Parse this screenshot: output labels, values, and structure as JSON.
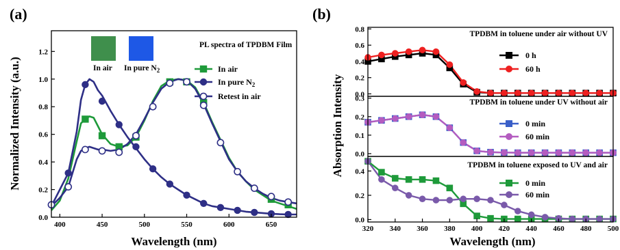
{
  "colors": {
    "green": "#1e9a3a",
    "navy": "#2e2f86",
    "red": "#ee2020",
    "black": "#000000",
    "blue": "#3a5fc8",
    "magenta": "#b45cc0",
    "purple": "#7a5aaa",
    "thumb_green": "#3f8f4c",
    "thumb_blue": "#1e58e6"
  },
  "chart_data": [
    {
      "panel": "(a)",
      "type": "line",
      "title": "PL spectra of TPDBM Film",
      "xlabel": "Wavelength (nm)",
      "ylabel": "Normalized Intensity (a.u.)",
      "xlim": [
        390,
        680
      ],
      "ylim": [
        0,
        1.35
      ],
      "xticks": [
        400,
        450,
        500,
        550,
        600,
        650
      ],
      "yticks": [
        0.0,
        0.2,
        0.4,
        0.6,
        0.8,
        1.0,
        1.2
      ],
      "legend_placement": "right",
      "insets": [
        {
          "label": "In air",
          "color": "thumb_green"
        },
        {
          "label": "In pure N",
          "sub": "2",
          "color": "thumb_blue"
        }
      ],
      "series": [
        {
          "name": "In air",
          "color": "green",
          "marker": "square",
          "filled": true,
          "curve_x": [
            390,
            400,
            410,
            420,
            425,
            430,
            435,
            440,
            445,
            450,
            460,
            470,
            480,
            490,
            500,
            510,
            520,
            530,
            540,
            550,
            560,
            570,
            580,
            590,
            600,
            610,
            620,
            630,
            640,
            650,
            660,
            670,
            680
          ],
          "curve_y": [
            0.05,
            0.12,
            0.28,
            0.55,
            0.68,
            0.71,
            0.73,
            0.72,
            0.66,
            0.6,
            0.53,
            0.51,
            0.52,
            0.58,
            0.7,
            0.84,
            0.95,
            0.99,
            1.0,
            0.99,
            0.94,
            0.83,
            0.69,
            0.56,
            0.43,
            0.33,
            0.26,
            0.2,
            0.16,
            0.12,
            0.1,
            0.08,
            0.06
          ],
          "marker_x": [
            430,
            450,
            470,
            490,
            530,
            550,
            570,
            650,
            670
          ],
          "marker_y": [
            0.71,
            0.59,
            0.51,
            0.58,
            0.98,
            0.98,
            0.83,
            0.13,
            0.09
          ]
        },
        {
          "name": "In pure N",
          "name_sub": "2",
          "color": "navy",
          "marker": "circle",
          "filled": true,
          "curve_x": [
            390,
            400,
            410,
            420,
            425,
            430,
            435,
            440,
            445,
            450,
            460,
            470,
            480,
            490,
            500,
            510,
            520,
            530,
            540,
            550,
            560,
            570,
            580,
            590,
            600,
            610,
            620,
            630,
            640,
            650,
            660,
            670,
            680
          ],
          "curve_y": [
            0.08,
            0.2,
            0.32,
            0.62,
            0.85,
            0.96,
            1.0,
            0.98,
            0.92,
            0.88,
            0.77,
            0.67,
            0.58,
            0.5,
            0.42,
            0.35,
            0.29,
            0.24,
            0.2,
            0.16,
            0.13,
            0.1,
            0.08,
            0.07,
            0.06,
            0.05,
            0.04,
            0.035,
            0.03,
            0.025,
            0.022,
            0.02,
            0.02
          ],
          "marker_x": [
            390,
            410,
            430,
            450,
            470,
            490,
            510,
            530,
            550,
            570,
            590,
            610,
            630,
            650,
            670
          ],
          "marker_y": [
            0.09,
            0.32,
            0.96,
            0.84,
            0.67,
            0.51,
            0.35,
            0.24,
            0.16,
            0.1,
            0.07,
            0.05,
            0.035,
            0.025,
            0.02
          ]
        },
        {
          "name": "Retest in air",
          "color": "navy",
          "marker": "circle",
          "filled": false,
          "curve_x": [
            390,
            400,
            410,
            420,
            425,
            430,
            435,
            440,
            445,
            450,
            460,
            470,
            480,
            490,
            500,
            510,
            520,
            530,
            540,
            550,
            560,
            570,
            580,
            590,
            600,
            610,
            620,
            630,
            640,
            650,
            660,
            670,
            680
          ],
          "curve_y": [
            0.08,
            0.14,
            0.22,
            0.42,
            0.48,
            0.5,
            0.51,
            0.5,
            0.49,
            0.49,
            0.48,
            0.49,
            0.53,
            0.6,
            0.71,
            0.83,
            0.93,
            0.98,
            1.0,
            0.99,
            0.93,
            0.82,
            0.68,
            0.55,
            0.42,
            0.33,
            0.26,
            0.21,
            0.17,
            0.14,
            0.12,
            0.11,
            0.1
          ],
          "marker_x": [
            390,
            410,
            430,
            450,
            470,
            490,
            510,
            530,
            550,
            570,
            590,
            610,
            630,
            650,
            670
          ],
          "marker_y": [
            0.09,
            0.22,
            0.49,
            0.48,
            0.47,
            0.59,
            0.8,
            0.97,
            0.98,
            0.81,
            0.54,
            0.33,
            0.21,
            0.15,
            0.11
          ]
        }
      ]
    },
    {
      "panel": "(b)",
      "type": "line",
      "xlabel": "Wavelength (nm)",
      "ylabel": "Absorption Intensity",
      "xlim": [
        320,
        500
      ],
      "xticks": [
        320,
        340,
        360,
        380,
        400,
        420,
        440,
        460,
        480,
        500
      ],
      "subplots": [
        {
          "title": "TPDBM in toluene under air without UV",
          "ylim": [
            -0.03,
            0.82
          ],
          "yticks": [
            0.0,
            0.2,
            0.4,
            0.6,
            0.8
          ],
          "series": [
            {
              "name": "0 h",
              "color": "black",
              "marker": "square",
              "x": [
                320,
                330,
                340,
                350,
                360,
                370,
                380,
                390,
                400,
                410,
                420,
                430,
                440,
                450,
                460,
                470,
                480,
                490,
                500
              ],
              "y": [
                0.4,
                0.43,
                0.46,
                0.48,
                0.5,
                0.48,
                0.32,
                0.12,
                0.02,
                0.01,
                0.01,
                0.01,
                0.01,
                0.01,
                0.01,
                0.01,
                0.01,
                0.01,
                0.01
              ]
            },
            {
              "name": "60 h",
              "color": "red",
              "marker": "circle",
              "x": [
                320,
                330,
                340,
                350,
                360,
                370,
                380,
                390,
                400,
                410,
                420,
                430,
                440,
                450,
                460,
                470,
                480,
                490,
                500
              ],
              "y": [
                0.45,
                0.48,
                0.5,
                0.52,
                0.54,
                0.52,
                0.36,
                0.14,
                0.03,
                0.01,
                0.01,
                0.01,
                0.01,
                0.01,
                0.01,
                0.01,
                0.01,
                0.01,
                0.01
              ]
            }
          ]
        },
        {
          "title": "TPDBM in toluene under UV without air",
          "ylim": [
            -0.015,
            0.31
          ],
          "yticks": [
            0.0,
            0.1,
            0.2,
            0.3
          ],
          "series": [
            {
              "name": "0 min",
              "color": "blue",
              "marker": "square",
              "x": [
                320,
                330,
                340,
                350,
                360,
                370,
                380,
                390,
                400,
                410,
                420,
                430,
                440,
                450,
                460,
                470,
                480,
                490,
                500
              ],
              "y": [
                0.17,
                0.18,
                0.19,
                0.2,
                0.21,
                0.2,
                0.14,
                0.06,
                0.015,
                0.008,
                0.006,
                0.005,
                0.005,
                0.005,
                0.005,
                0.005,
                0.005,
                0.005,
                0.005
              ]
            },
            {
              "name": "60 min",
              "color": "magenta",
              "marker": "circle",
              "x": [
                320,
                330,
                340,
                350,
                360,
                370,
                380,
                390,
                400,
                410,
                420,
                430,
                440,
                450,
                460,
                470,
                480,
                490,
                500
              ],
              "y": [
                0.17,
                0.18,
                0.19,
                0.2,
                0.21,
                0.2,
                0.14,
                0.06,
                0.015,
                0.008,
                0.006,
                0.005,
                0.005,
                0.005,
                0.005,
                0.005,
                0.005,
                0.005,
                0.005
              ]
            }
          ]
        },
        {
          "title": "TPDBM in toluene exposed to UV and air",
          "ylim": [
            -0.02,
            0.52
          ],
          "yticks": [
            0.0,
            0.2,
            0.4
          ],
          "series": [
            {
              "name": "0 min",
              "color": "green",
              "marker": "square",
              "x": [
                320,
                330,
                340,
                350,
                360,
                370,
                380,
                390,
                400,
                410,
                420,
                430,
                440,
                450,
                460,
                470,
                480,
                490,
                500
              ],
              "y": [
                0.48,
                0.39,
                0.34,
                0.33,
                0.33,
                0.32,
                0.26,
                0.13,
                0.03,
                0.01,
                0.005,
                0.005,
                0.005,
                0.005,
                0.005,
                0.005,
                0.005,
                0.005,
                0.005
              ]
            },
            {
              "name": "60 min",
              "color": "purple",
              "marker": "circle",
              "x": [
                320,
                330,
                340,
                350,
                360,
                370,
                380,
                390,
                400,
                410,
                420,
                430,
                440,
                450,
                460,
                470,
                480,
                490,
                500
              ],
              "y": [
                0.48,
                0.33,
                0.26,
                0.2,
                0.17,
                0.16,
                0.16,
                0.17,
                0.17,
                0.16,
                0.12,
                0.07,
                0.04,
                0.02,
                0.01,
                0.005,
                0.005,
                0.005,
                0.005
              ]
            }
          ]
        }
      ]
    }
  ]
}
